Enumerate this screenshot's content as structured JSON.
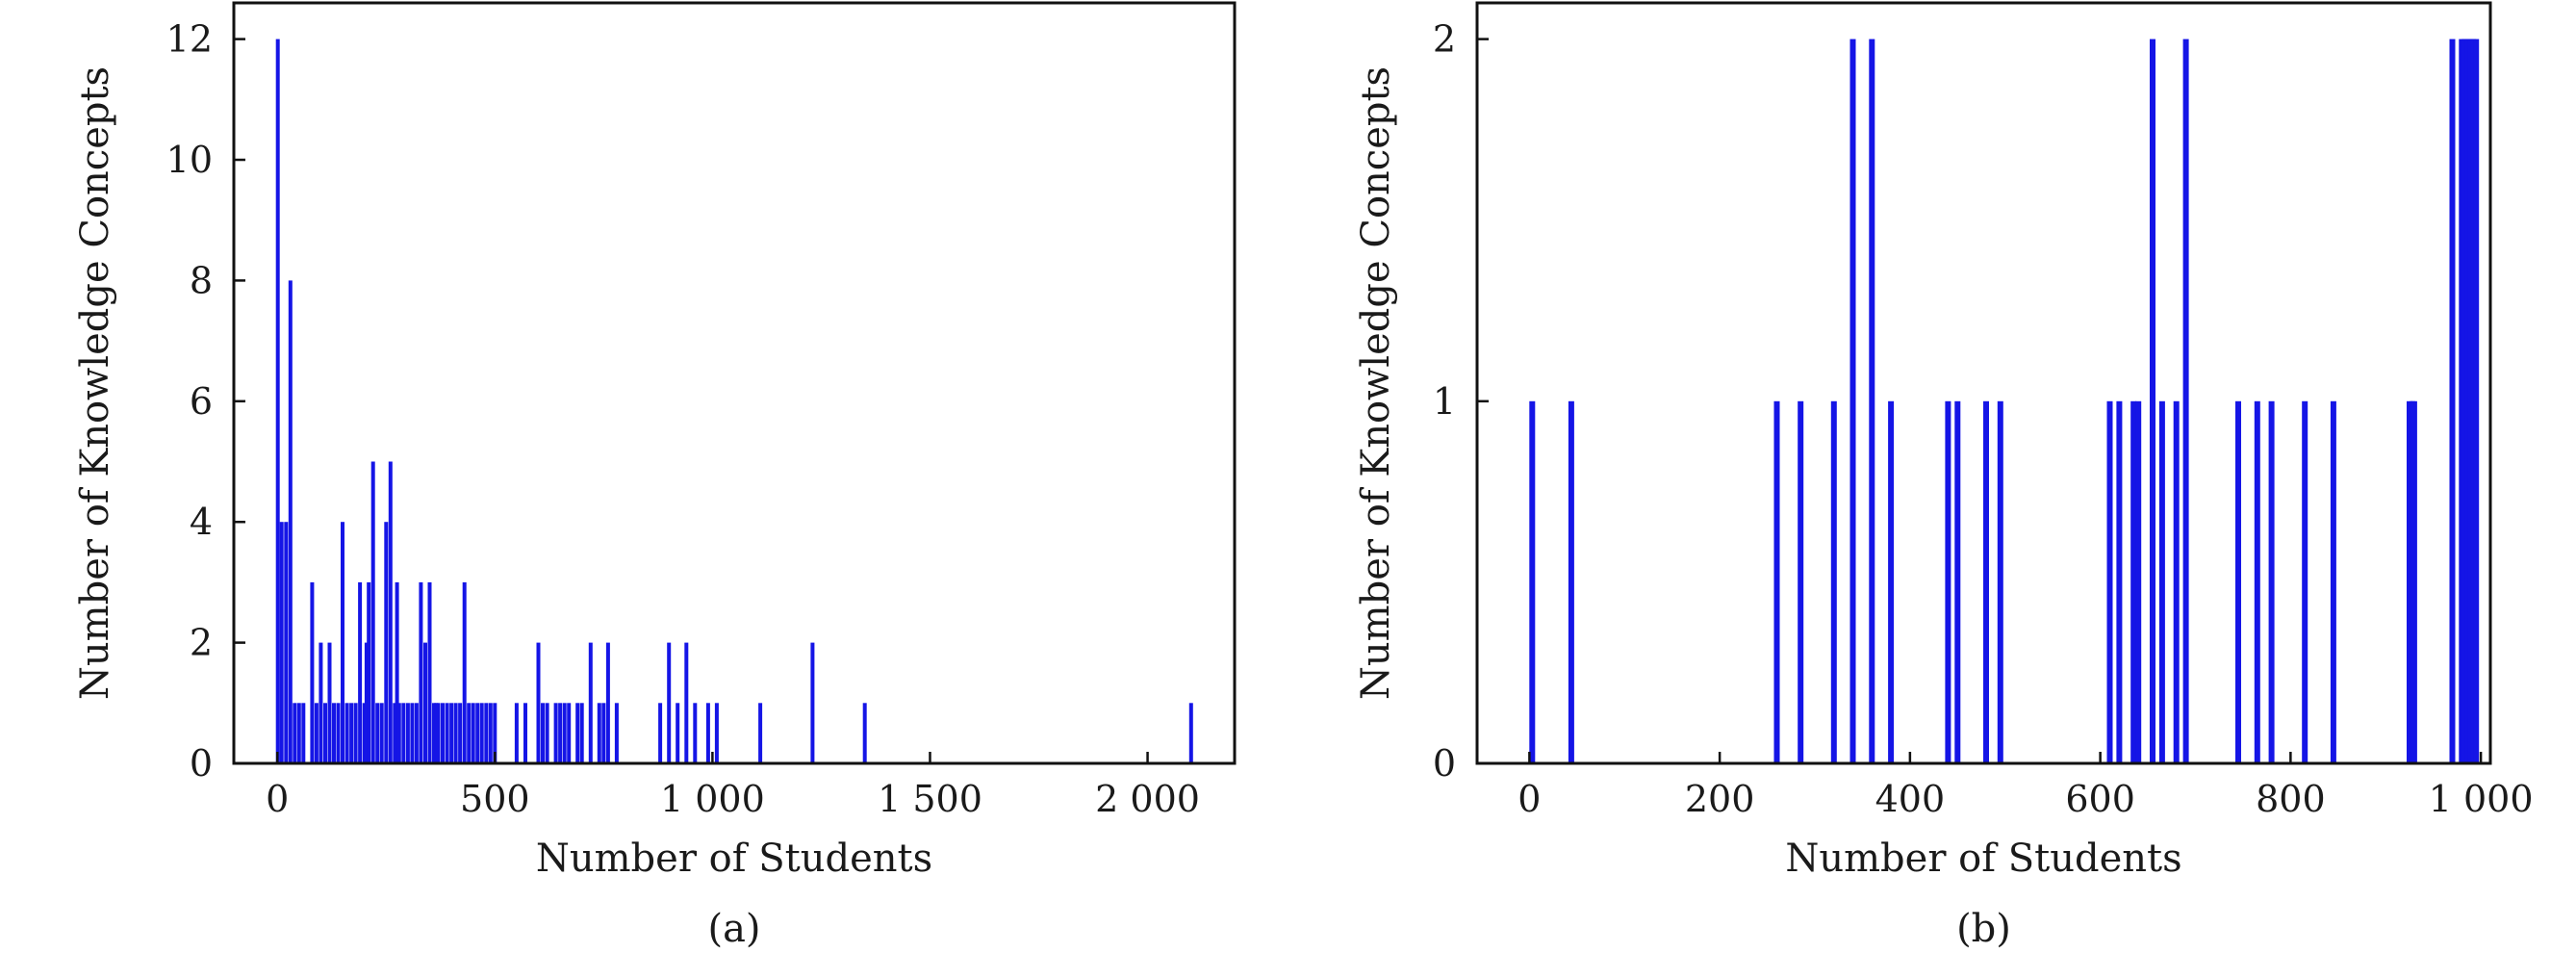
{
  "colors": {
    "bar": "#1515e6",
    "axis": "#111111",
    "background": "#ffffff"
  },
  "chart_data": [
    {
      "type": "bar",
      "panel_label": "(a)",
      "xlabel": "Number of Students",
      "ylabel": "Number of Knowledge Concepts",
      "xlim": [
        -100,
        2200
      ],
      "ylim": [
        0,
        12.6
      ],
      "xticks": [
        0,
        500,
        1000,
        1500,
        2000
      ],
      "xtick_labels": [
        "0",
        "500",
        "1 000",
        "1 500",
        "2 000"
      ],
      "yticks": [
        0,
        2,
        4,
        6,
        8,
        10,
        12
      ],
      "ytick_labels": [
        "0",
        "2",
        "4",
        "6",
        "8",
        "10",
        "12"
      ],
      "x": [
        1,
        10,
        20,
        30,
        40,
        50,
        60,
        80,
        90,
        100,
        110,
        120,
        130,
        140,
        150,
        160,
        170,
        180,
        190,
        200,
        205,
        210,
        220,
        230,
        240,
        250,
        260,
        270,
        275,
        280,
        290,
        300,
        310,
        320,
        330,
        340,
        350,
        360,
        365,
        370,
        380,
        390,
        400,
        410,
        420,
        430,
        440,
        450,
        460,
        470,
        480,
        490,
        500,
        550,
        570,
        600,
        610,
        620,
        640,
        650,
        660,
        670,
        690,
        700,
        720,
        740,
        750,
        760,
        780,
        880,
        900,
        920,
        940,
        960,
        990,
        1010,
        1110,
        1230,
        1350,
        2100
      ],
      "values": [
        12,
        4,
        4,
        8,
        1,
        1,
        1,
        3,
        1,
        2,
        1,
        2,
        1,
        1,
        4,
        1,
        1,
        1,
        3,
        1,
        2,
        3,
        5,
        1,
        1,
        4,
        5,
        1,
        3,
        1,
        1,
        1,
        1,
        1,
        3,
        2,
        3,
        1,
        1,
        1,
        1,
        1,
        1,
        1,
        1,
        3,
        1,
        1,
        1,
        1,
        1,
        1,
        1,
        1,
        1,
        2,
        1,
        1,
        1,
        1,
        1,
        1,
        1,
        1,
        2,
        1,
        1,
        2,
        1,
        1,
        2,
        1,
        2,
        1,
        1,
        1,
        1,
        2,
        1,
        1
      ]
    },
    {
      "type": "bar",
      "panel_label": "(b)",
      "xlabel": "Number of Students",
      "ylabel": "Number of Knowledge Concepts",
      "xlim": [
        -55,
        1010
      ],
      "ylim": [
        0,
        2.1
      ],
      "xticks": [
        0,
        200,
        400,
        600,
        800,
        1000
      ],
      "xtick_labels": [
        "0",
        "200",
        "400",
        "600",
        "800",
        "1 000"
      ],
      "yticks": [
        0,
        1,
        2
      ],
      "ytick_labels": [
        "0",
        "1",
        "2"
      ],
      "x": [
        3,
        44,
        260,
        285,
        320,
        340,
        360,
        380,
        440,
        450,
        480,
        495,
        610,
        620,
        635,
        640,
        655,
        665,
        680,
        690,
        745,
        765,
        780,
        815,
        845,
        925,
        928,
        930,
        970,
        980,
        983,
        986,
        989,
        992,
        995
      ],
      "values": [
        1,
        1,
        1,
        1,
        1,
        2,
        2,
        1,
        1,
        1,
        1,
        1,
        1,
        1,
        1,
        1,
        2,
        1,
        1,
        2,
        1,
        1,
        1,
        1,
        1,
        1,
        1,
        1,
        2,
        2,
        2,
        2,
        2,
        2,
        2
      ]
    }
  ]
}
